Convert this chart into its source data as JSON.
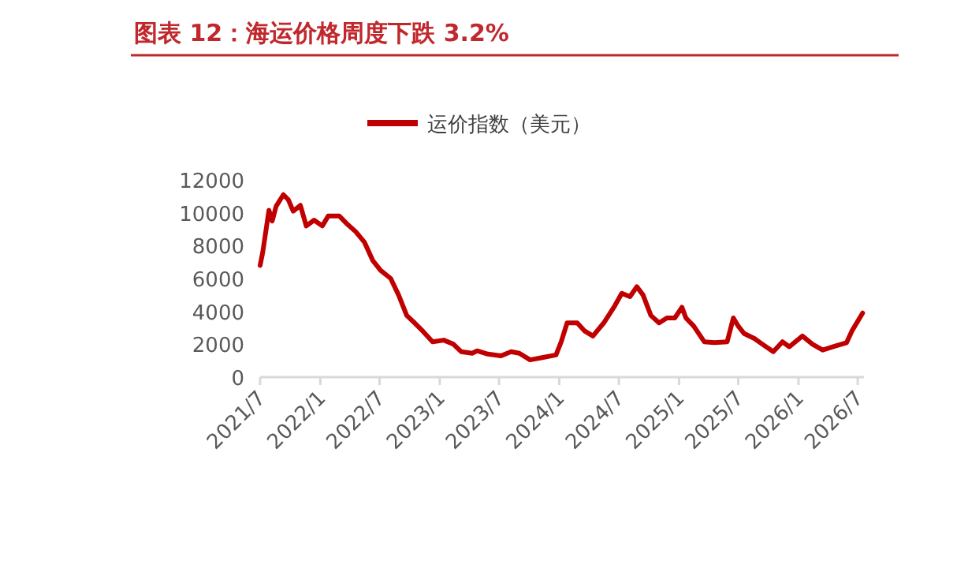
{
  "chart_data": {
    "type": "line",
    "title": "图表 12：海运价格周度下跌 3.2%",
    "x": [
      "2021-07-01",
      "2021-07-09",
      "2021-07-28",
      "2021-08-07",
      "2021-08-19",
      "2021-09-10",
      "2021-09-25",
      "2021-10-10",
      "2021-11-01",
      "2021-11-19",
      "2021-12-13",
      "2022-01-07",
      "2022-01-25",
      "2022-02-28",
      "2022-03-22",
      "2022-04-19",
      "2022-05-16",
      "2022-06-10",
      "2022-07-04",
      "2022-08-04",
      "2022-08-28",
      "2022-09-22",
      "2022-10-16",
      "2022-11-10",
      "2022-12-10",
      "2023-01-13",
      "2023-02-12",
      "2023-03-07",
      "2023-04-10",
      "2023-04-25",
      "2023-05-28",
      "2023-07-07",
      "2023-08-07",
      "2023-09-01",
      "2023-10-04",
      "2023-11-13",
      "2023-12-22",
      "2024-01-07",
      "2024-01-25",
      "2024-02-25",
      "2024-03-19",
      "2024-04-13",
      "2024-05-16",
      "2024-06-16",
      "2024-07-10",
      "2024-08-04",
      "2024-08-25",
      "2024-09-13",
      "2024-10-07",
      "2024-11-01",
      "2024-11-25",
      "2024-12-19",
      "2025-01-10",
      "2025-01-22",
      "2025-02-15",
      "2025-03-19",
      "2025-04-19",
      "2025-05-28",
      "2025-06-16",
      "2025-07-01",
      "2025-07-19",
      "2025-08-19",
      "2025-09-13",
      "2025-10-16",
      "2025-11-13",
      "2025-12-04",
      "2026-01-13",
      "2026-02-13",
      "2026-03-16",
      "2026-04-25",
      "2026-05-28",
      "2026-06-13",
      "2026-07-16"
    ],
    "series": [
      {
        "name": "运价指数（美元）",
        "color": "#c00000",
        "values": [
          6800,
          7600,
          10150,
          9500,
          10400,
          11100,
          10800,
          10100,
          10450,
          9200,
          9550,
          9200,
          9800,
          9800,
          9350,
          8850,
          8200,
          7100,
          6500,
          6000,
          5000,
          3750,
          3300,
          2800,
          2150,
          2250,
          2000,
          1550,
          1450,
          1600,
          1400,
          1300,
          1550,
          1450,
          1050,
          1200,
          1350,
          2150,
          3300,
          3300,
          2800,
          2500,
          3300,
          4250,
          5100,
          4900,
          5500,
          5000,
          3750,
          3300,
          3600,
          3600,
          4250,
          3600,
          3100,
          2150,
          2100,
          2150,
          3600,
          3100,
          2650,
          2350,
          2000,
          1550,
          2150,
          1850,
          2500,
          2000,
          1650,
          1900,
          2100,
          2800,
          3900
        ]
      }
    ],
    "xlim": [
      "2021-07-01",
      "2026-07-20"
    ],
    "xticks": [
      {
        "value": "2021-07-01",
        "label": "2021/7"
      },
      {
        "value": "2022-01-01",
        "label": "2022/1"
      },
      {
        "value": "2022-07-01",
        "label": "2022/7"
      },
      {
        "value": "2023-01-01",
        "label": "2023/1"
      },
      {
        "value": "2023-07-01",
        "label": "2023/7"
      },
      {
        "value": "2024-01-01",
        "label": "2024/1"
      },
      {
        "value": "2024-07-01",
        "label": "2024/7"
      },
      {
        "value": "2025-01-01",
        "label": "2025/1"
      },
      {
        "value": "2025-07-01",
        "label": "2025/7"
      },
      {
        "value": "2026-01-01",
        "label": "2026/1"
      },
      {
        "value": "2026-07-01",
        "label": "2026/7"
      }
    ],
    "ylim": [
      0,
      12000
    ],
    "yticks": [
      0,
      2000,
      4000,
      6000,
      8000,
      10000,
      12000
    ],
    "grid": false,
    "legend": "top",
    "marker": "none",
    "line_style": "solid"
  }
}
